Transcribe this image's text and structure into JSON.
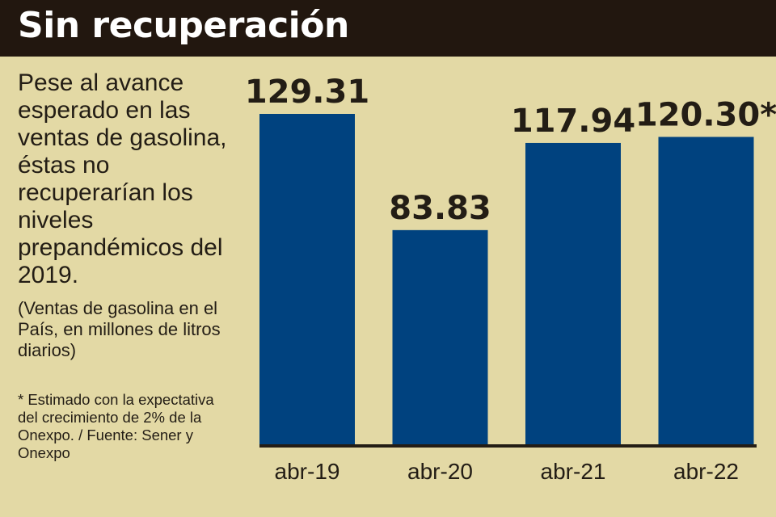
{
  "title": "Sin recuperación",
  "description": "Pese al avance esperado en las ventas de gasolina, éstas no recuperarían los niveles prepandémicos del 2019.",
  "units_note": "(Ventas de gasolina en el País, en millones de litros diarios)",
  "footnote": "* Estimado con la expectativa del crecimiento de 2% de la Onexpo. / Fuente: Sener y Onexpo",
  "colors": {
    "header": "#22170f",
    "background": "#e3d9a5",
    "bar": "#00427f",
    "text": "#231d15"
  },
  "chart_data": {
    "type": "bar",
    "title": "Sin recuperación",
    "categories": [
      "abr-19",
      "abr-20",
      "abr-21",
      "abr-22"
    ],
    "values": [
      129.31,
      83.83,
      117.94,
      120.3
    ],
    "data_labels": [
      "129.31",
      "83.83",
      "117.94",
      "120.30*"
    ],
    "xlabel": "",
    "ylabel": "",
    "grid": false,
    "legend": "none"
  }
}
